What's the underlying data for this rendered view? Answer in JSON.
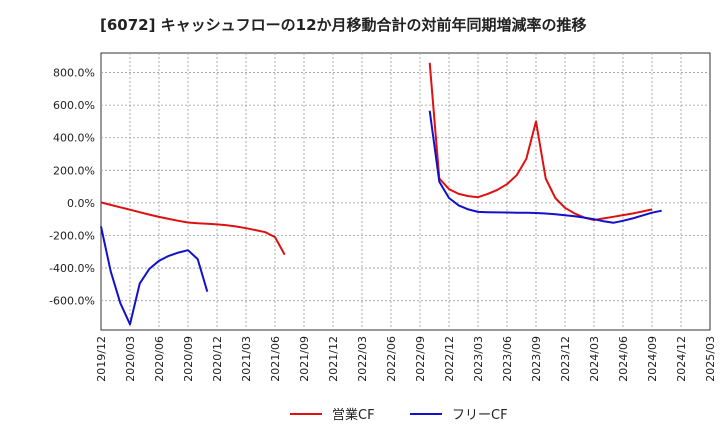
{
  "chart_data": {
    "type": "line",
    "title": "[6072]  キャッシュフローの12か月移動合計の対前年同期増減率の推移",
    "xlabel": "",
    "ylabel": "",
    "ylim": [
      -780,
      920
    ],
    "yticks": [
      800,
      600,
      400,
      200,
      0,
      -200,
      -400,
      -600
    ],
    "ytick_labels": [
      "800.0%",
      "600.0%",
      "400.0%",
      "200.0%",
      "0.0%",
      "-200.0%",
      "-400.0%",
      "-600.0%"
    ],
    "x_start": "2019-12",
    "x_end": "2025-03",
    "xtick_labels": [
      "2019/12",
      "2020/03",
      "2020/06",
      "2020/09",
      "2020/12",
      "2021/03",
      "2021/06",
      "2021/09",
      "2021/12",
      "2022/03",
      "2022/06",
      "2022/09",
      "2022/12",
      "2023/03",
      "2023/06",
      "2023/09",
      "2023/12",
      "2024/03",
      "2024/06",
      "2024/09",
      "2024/12",
      "2025/03"
    ],
    "grid": true,
    "legend_position": "bottom",
    "colors": {
      "営業CF": "#dd1111",
      "フリーCF": "#1111cc"
    },
    "series": [
      {
        "name": "営業CF",
        "segments": [
          {
            "start": "2019-12",
            "values": [
              3,
              -12,
              -27,
              -42,
              -57,
              -72,
              -86,
              -98,
              -110,
              -120,
              -125,
              -128,
              -132,
              -137,
              -145,
              -155,
              -167,
              -180,
              -210,
              -318
            ]
          },
          {
            "start": "2022-10",
            "values": [
              860,
              150,
              85,
              55,
              42,
              35,
              55,
              80,
              115,
              170,
              270,
              500,
              150,
              30,
              -30,
              -65,
              -90,
              -105,
              -95,
              -85,
              -75,
              -65,
              -53,
              -40
            ]
          }
        ]
      },
      {
        "name": "フリーCF",
        "segments": [
          {
            "start": "2019-12",
            "values": [
              -145,
              -420,
              -615,
              -745,
              -495,
              -405,
              -355,
              -325,
              -305,
              -290,
              -345,
              -545
            ]
          },
          {
            "start": "2022-10",
            "values": [
              565,
              130,
              30,
              -15,
              -40,
              -55,
              -57,
              -58,
              -59,
              -60,
              -61,
              -62,
              -65,
              -70,
              -76,
              -82,
              -90,
              -100,
              -113,
              -122,
              -110,
              -95,
              -78,
              -60,
              -48
            ]
          }
        ]
      }
    ]
  }
}
